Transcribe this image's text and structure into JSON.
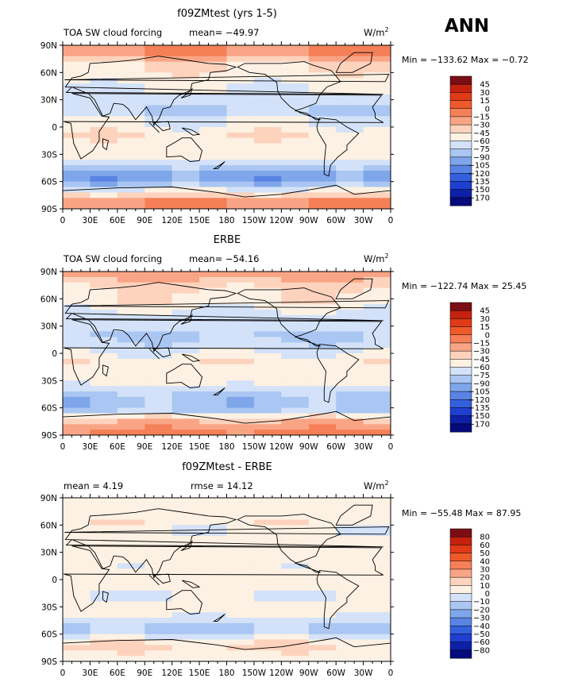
{
  "season": "ANN",
  "units_base": "W/m",
  "units_sup": "2",
  "lat_ticks": [
    "90N",
    "60N",
    "30N",
    "0",
    "30S",
    "60S",
    "90S"
  ],
  "lon_ticks": [
    "0",
    "30E",
    "60E",
    "90E",
    "120E",
    "150E",
    "180",
    "150W",
    "120W",
    "90W",
    "60W",
    "30W",
    "0"
  ],
  "chart_data": [
    {
      "type": "heatmap",
      "title": "f09ZMtest (yrs 1-5)",
      "field": "TOA SW cloud forcing",
      "stat_text": "mean= −49.97",
      "minmax_text": "Min = −133.62 Max =  −0.72",
      "levels": [
        "45",
        "30",
        "15",
        "0",
        "−15",
        "−30",
        "−45",
        "−60",
        "−75",
        "−90",
        "−105",
        "−120",
        "−135",
        "−150",
        "−170"
      ],
      "colors": [
        "#7a0e14",
        "#c4220f",
        "#e03a16",
        "#ee5a2a",
        "#f58058",
        "#f9a585",
        "#fdd3bd",
        "#fdf1e3",
        "#d3e2f8",
        "#aac6f2",
        "#7fa6ea",
        "#5a84e3",
        "#3560dd",
        "#1f3fd0",
        "#0e20a6",
        "#060a7a"
      ],
      "profile": [
        -14,
        -15,
        -40,
        -48,
        -52,
        -62,
        -60,
        -65,
        -78,
        -62,
        -55,
        -48,
        -50,
        -48,
        -58,
        -80,
        -105,
        -82,
        -52,
        -16,
        -14
      ]
    },
    {
      "type": "heatmap",
      "title": "ERBE",
      "field": "TOA SW cloud forcing",
      "stat_text": "mean= −54.16",
      "minmax_text": "Min = −122.74 Max =  25.45",
      "levels": [
        "45",
        "30",
        "15",
        "0",
        "−15",
        "−30",
        "−45",
        "−60",
        "−75",
        "−90",
        "−105",
        "−120",
        "−135",
        "−150",
        "−170"
      ],
      "colors": [
        "#7a0e14",
        "#c4220f",
        "#e03a16",
        "#ee5a2a",
        "#f58058",
        "#f9a585",
        "#fdd3bd",
        "#fdf1e3",
        "#d3e2f8",
        "#aac6f2",
        "#7fa6ea",
        "#5a84e3",
        "#3560dd",
        "#1f3fd0",
        "#0e20a6",
        "#060a7a"
      ],
      "profile": [
        -20,
        -30,
        -45,
        -48,
        -52,
        -64,
        -70,
        -72,
        -80,
        -68,
        -60,
        -50,
        -55,
        -52,
        -62,
        -78,
        -85,
        -78,
        -38,
        -18,
        -12
      ]
    },
    {
      "type": "heatmap",
      "title": "f09ZMtest - ERBE",
      "field": "",
      "stat_text": "mean =     4.19",
      "rmse_text": "rmse =   14.12",
      "minmax_text": "Min = −55.48 Max =   87.95",
      "levels": [
        "80",
        "60",
        "50",
        "40",
        "30",
        "20",
        "10",
        "0",
        "−10",
        "−20",
        "−30",
        "−40",
        "−50",
        "−60",
        "−80"
      ],
      "colors": [
        "#7a0e14",
        "#c4220f",
        "#e03a16",
        "#ee5a2a",
        "#f58058",
        "#f9a585",
        "#fdd3bd",
        "#fdf1e3",
        "#d3e2f8",
        "#aac6f2",
        "#7fa6ea",
        "#5a84e3",
        "#3560dd",
        "#1f3fd0",
        "#0e20a6",
        "#060a7a"
      ],
      "profile": [
        4,
        6,
        4,
        6,
        3,
        4,
        8,
        6,
        2,
        5,
        5,
        4,
        -2,
        4,
        4,
        -5,
        -18,
        -4,
        12,
        8,
        6
      ]
    }
  ]
}
